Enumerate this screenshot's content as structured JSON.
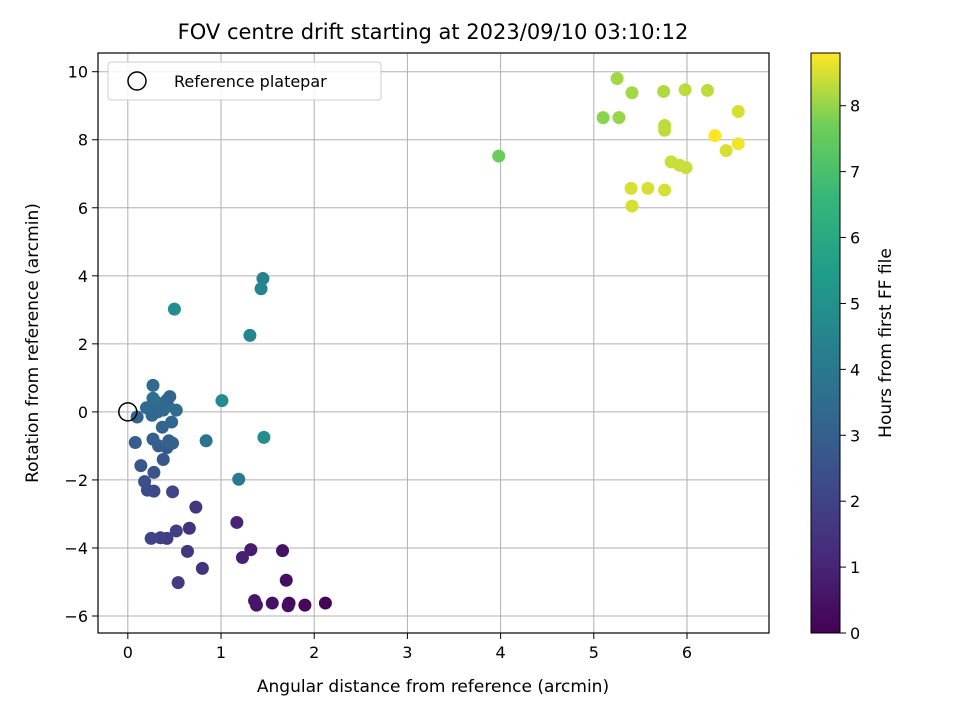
{
  "chart_data": {
    "type": "scatter",
    "title": "FOV centre drift starting at 2023/09/10 03:10:12",
    "xlabel": "Angular distance from reference (arcmin)",
    "ylabel": "Rotation from reference (arcmin)",
    "xlim": [
      -0.32,
      6.88
    ],
    "ylim": [
      -6.5,
      10.55
    ],
    "xticks": [
      0,
      1,
      2,
      3,
      4,
      5,
      6
    ],
    "yticks": [
      -6,
      -4,
      -2,
      0,
      2,
      4,
      6,
      8,
      10
    ],
    "grid": true,
    "legend": {
      "placement": "top-left",
      "label": "Reference platepar"
    },
    "reference_point": {
      "x": 0,
      "y": 0
    },
    "colorbar": {
      "label": "Hours from first FF file",
      "colormap": "viridis",
      "range": [
        0,
        8.8
      ],
      "ticks": [
        0,
        1,
        2,
        3,
        4,
        5,
        6,
        7,
        8
      ]
    },
    "points": [
      {
        "x": 2.12,
        "y": -5.62,
        "c": 0.1
      },
      {
        "x": 1.9,
        "y": -5.68,
        "c": 0.2
      },
      {
        "x": 1.73,
        "y": -5.62,
        "c": 0.3
      },
      {
        "x": 1.72,
        "y": -5.7,
        "c": 0.35
      },
      {
        "x": 1.55,
        "y": -5.62,
        "c": 0.45
      },
      {
        "x": 1.38,
        "y": -5.68,
        "c": 0.55
      },
      {
        "x": 1.36,
        "y": -5.55,
        "c": 0.6
      },
      {
        "x": 1.7,
        "y": -4.95,
        "c": 0.4
      },
      {
        "x": 1.66,
        "y": -4.08,
        "c": 0.5
      },
      {
        "x": 1.32,
        "y": -4.05,
        "c": 0.8
      },
      {
        "x": 1.23,
        "y": -4.28,
        "c": 0.9
      },
      {
        "x": 1.17,
        "y": -3.25,
        "c": 1.0
      },
      {
        "x": 0.8,
        "y": -4.6,
        "c": 1.5
      },
      {
        "x": 0.64,
        "y": -4.1,
        "c": 1.6
      },
      {
        "x": 0.54,
        "y": -5.02,
        "c": 1.7
      },
      {
        "x": 0.66,
        "y": -3.42,
        "c": 1.5
      },
      {
        "x": 0.73,
        "y": -2.8,
        "c": 1.6
      },
      {
        "x": 0.52,
        "y": -3.5,
        "c": 1.9
      },
      {
        "x": 0.42,
        "y": -3.72,
        "c": 1.8
      },
      {
        "x": 0.35,
        "y": -3.7,
        "c": 1.9
      },
      {
        "x": 0.25,
        "y": -3.72,
        "c": 2.0
      },
      {
        "x": 0.48,
        "y": -2.35,
        "c": 2.1
      },
      {
        "x": 0.28,
        "y": -2.33,
        "c": 2.2
      },
      {
        "x": 0.21,
        "y": -2.3,
        "c": 2.3
      },
      {
        "x": 0.18,
        "y": -2.05,
        "c": 2.4
      },
      {
        "x": 0.28,
        "y": -1.78,
        "c": 2.6
      },
      {
        "x": 0.14,
        "y": -1.58,
        "c": 2.7
      },
      {
        "x": 0.38,
        "y": -1.4,
        "c": 2.7
      },
      {
        "x": 0.42,
        "y": -1.05,
        "c": 2.8
      },
      {
        "x": 0.33,
        "y": -1.0,
        "c": 2.9
      },
      {
        "x": 0.27,
        "y": -0.8,
        "c": 3.0
      },
      {
        "x": 0.08,
        "y": -0.9,
        "c": 2.9
      },
      {
        "x": 0.44,
        "y": -0.85,
        "c": 3.1
      },
      {
        "x": 0.48,
        "y": -0.92,
        "c": 3.1
      },
      {
        "x": 0.37,
        "y": -0.45,
        "c": 3.2
      },
      {
        "x": 0.47,
        "y": -0.3,
        "c": 3.3
      },
      {
        "x": 0.1,
        "y": -0.15,
        "c": 3.2
      },
      {
        "x": 0.26,
        "y": -0.1,
        "c": 3.3
      },
      {
        "x": 0.32,
        "y": 0.0,
        "c": 3.3
      },
      {
        "x": 0.38,
        "y": 0.05,
        "c": 3.4
      },
      {
        "x": 0.2,
        "y": 0.12,
        "c": 3.4
      },
      {
        "x": 0.52,
        "y": 0.05,
        "c": 3.5
      },
      {
        "x": 0.43,
        "y": 0.18,
        "c": 3.5
      },
      {
        "x": 0.3,
        "y": 0.3,
        "c": 3.5
      },
      {
        "x": 0.36,
        "y": 0.22,
        "c": 3.4
      },
      {
        "x": 0.42,
        "y": 0.35,
        "c": 3.3
      },
      {
        "x": 0.45,
        "y": 0.45,
        "c": 3.2
      },
      {
        "x": 0.27,
        "y": 0.4,
        "c": 3.6
      },
      {
        "x": 0.27,
        "y": 0.78,
        "c": 3.4
      },
      {
        "x": 0.84,
        "y": -0.85,
        "c": 3.8
      },
      {
        "x": 1.19,
        "y": -1.98,
        "c": 4.0
      },
      {
        "x": 1.01,
        "y": 0.33,
        "c": 4.7
      },
      {
        "x": 1.46,
        "y": -0.75,
        "c": 4.8
      },
      {
        "x": 1.31,
        "y": 2.25,
        "c": 4.5
      },
      {
        "x": 0.5,
        "y": 3.02,
        "c": 4.8
      },
      {
        "x": 1.45,
        "y": 3.92,
        "c": 4.4
      },
      {
        "x": 1.43,
        "y": 3.62,
        "c": 4.5
      },
      {
        "x": 3.98,
        "y": 7.52,
        "c": 7.6
      },
      {
        "x": 5.1,
        "y": 8.65,
        "c": 7.9
      },
      {
        "x": 5.27,
        "y": 8.65,
        "c": 8.0
      },
      {
        "x": 5.25,
        "y": 9.8,
        "c": 8.1
      },
      {
        "x": 5.41,
        "y": 9.38,
        "c": 8.1
      },
      {
        "x": 5.75,
        "y": 9.42,
        "c": 8.2
      },
      {
        "x": 5.98,
        "y": 9.47,
        "c": 8.3
      },
      {
        "x": 6.22,
        "y": 9.45,
        "c": 8.3
      },
      {
        "x": 5.76,
        "y": 8.42,
        "c": 8.3
      },
      {
        "x": 5.76,
        "y": 8.28,
        "c": 8.3
      },
      {
        "x": 6.55,
        "y": 8.83,
        "c": 8.5
      },
      {
        "x": 6.3,
        "y": 8.12,
        "c": 8.8
      },
      {
        "x": 6.55,
        "y": 7.88,
        "c": 8.7
      },
      {
        "x": 6.42,
        "y": 7.68,
        "c": 8.5
      },
      {
        "x": 5.83,
        "y": 7.35,
        "c": 8.4
      },
      {
        "x": 5.92,
        "y": 7.25,
        "c": 8.4
      },
      {
        "x": 5.99,
        "y": 7.18,
        "c": 8.4
      },
      {
        "x": 5.4,
        "y": 6.57,
        "c": 8.5
      },
      {
        "x": 5.58,
        "y": 6.57,
        "c": 8.5
      },
      {
        "x": 5.76,
        "y": 6.52,
        "c": 8.5
      },
      {
        "x": 5.41,
        "y": 6.05,
        "c": 8.5
      }
    ]
  }
}
